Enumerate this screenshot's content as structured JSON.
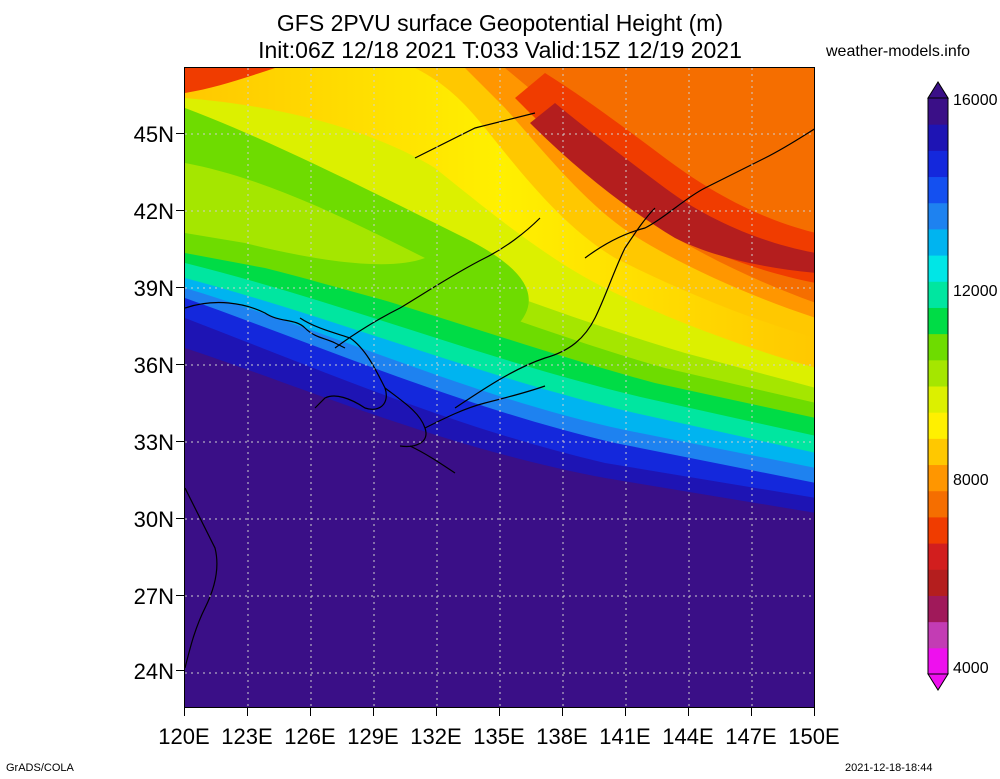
{
  "title": {
    "line1": "GFS 2PVU surface Geopotential Height (m)",
    "line2": "Init:06Z 12/18 2021 T:033 Valid:15Z 12/19 2021"
  },
  "source": "weather-models.info",
  "map": {
    "lat_labels": [
      "45N",
      "42N",
      "39N",
      "36N",
      "33N",
      "30N",
      "27N",
      "24N"
    ],
    "lon_labels": [
      "120E",
      "123E",
      "126E",
      "129E",
      "132E",
      "135E",
      "138E",
      "141E",
      "144E",
      "147E",
      "150E"
    ],
    "lat_range": [
      22.5,
      47.5
    ],
    "lon_range": [
      120,
      150
    ],
    "grid": "dotted",
    "overlay": "coastlines"
  },
  "colorbar": {
    "tick_labels": [
      "16000",
      "12000",
      "8000",
      "4000"
    ],
    "range": [
      4000,
      16000
    ],
    "colors": [
      "#ee10ee",
      "#c33cb4",
      "#a0195a",
      "#b41e1e",
      "#d21e1e",
      "#f03c00",
      "#f56e00",
      "#ff9600",
      "#ffc800",
      "#fff000",
      "#dcf000",
      "#a5e600",
      "#6edc00",
      "#00dc46",
      "#00e6a0",
      "#00e6e6",
      "#00b4f0",
      "#1e82f0",
      "#1450f0",
      "#1428dc",
      "#1e14b4",
      "#3a0f87"
    ]
  },
  "footer": {
    "left": "GrADS/COLA",
    "right": "2021-12-18-18:44"
  }
}
